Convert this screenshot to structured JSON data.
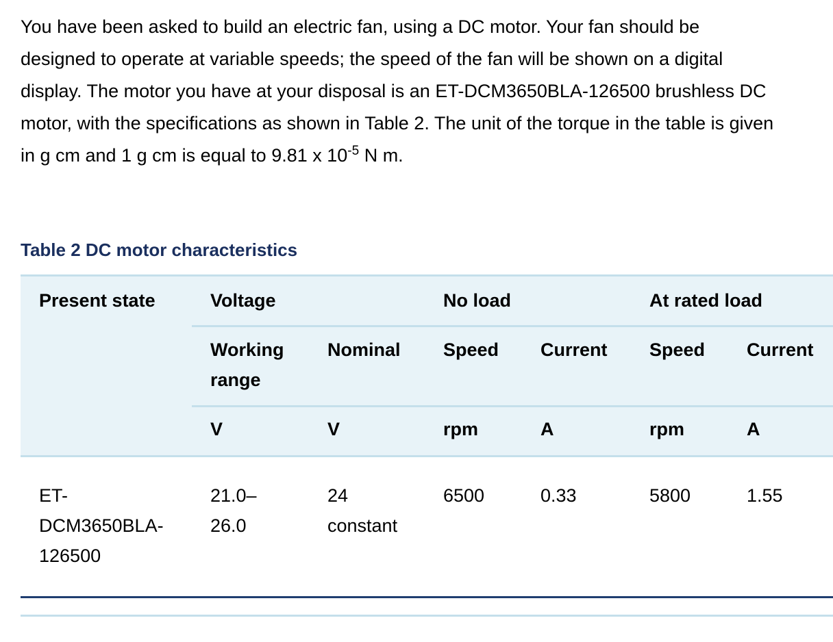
{
  "intro": {
    "text_before_exponent": "You have been asked to build an electric fan, using a DC motor. Your fan should be designed to operate at variable speeds; the speed of the fan will be shown on a digital display. The motor you have at your disposal is an ET-DCM3650BLA-126500 brushless DC motor, with the specifications as shown in Table 2. The unit of the torque in the table is given in g cm and 1 g cm is equal to 9.81 x 10",
    "exponent": "-5",
    "text_after_exponent": " N m."
  },
  "table": {
    "caption": "Table 2  DC motor characteristics",
    "headers": {
      "present_state": "Present state",
      "voltage": "Voltage",
      "no_load": "No load",
      "at_rated_load": "At rated load",
      "working_range": "Working range",
      "nominal": "Nominal",
      "speed_no_load": "Speed",
      "current_no_load": "Current",
      "speed_rated": "Speed",
      "current_rated": "Current"
    },
    "units": {
      "working_range": "V",
      "nominal": "V",
      "speed_no_load": "rpm",
      "current_no_load": "A",
      "speed_rated": "rpm",
      "current_rated": "A"
    },
    "row": {
      "present_state": "ET-DCM3650BLA-126500",
      "working_range": "21.0–26.0",
      "nominal": "24 constant",
      "speed_no_load": "6500",
      "current_no_load": "0.33",
      "speed_rated": "5800",
      "current_rated": "1.55"
    }
  },
  "colors": {
    "caption": "#1a2f5e",
    "header_bg": "#e8f3f8",
    "rule_light": "#c4dfeb",
    "rule_dark": "#1f3d70"
  }
}
